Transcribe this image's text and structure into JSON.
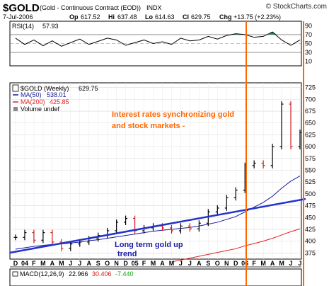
{
  "header": {
    "symbol": "$GOLD",
    "description": "(Gold - Continuous Contract (EOD))",
    "exchange": "INDX",
    "brand": "© StockCharts.com",
    "date": "7-Jul-2006",
    "open_label": "Op",
    "open": "617.52",
    "high_label": "Hi",
    "high": "637.48",
    "low_label": "Lo",
    "low": "614.63",
    "close_label": "Cl",
    "close": "629.75",
    "change_label": "Chg",
    "change": "+13.75 (+2.23%)"
  },
  "rsi": {
    "label": "RSI(14)",
    "value": "57.93",
    "ticks": [
      "90",
      "70",
      "50",
      "30",
      "10"
    ],
    "colors": {
      "line": "#000000",
      "fill": "#2e8b57"
    }
  },
  "price": {
    "legend": [
      {
        "label": "$GOLD (Weekly)",
        "value": "629.75",
        "color": "#000000"
      },
      {
        "label": "MA(50)",
        "value": "538.01",
        "color": "#1a1a9e"
      },
      {
        "label": "MA(200)",
        "value": "425.85",
        "color": "#e02020"
      },
      {
        "label": "Volume undef",
        "value": "",
        "color": "#555555"
      }
    ],
    "ticks": [
      "725",
      "700",
      "675",
      "650",
      "625",
      "600",
      "575",
      "550",
      "525",
      "500",
      "475",
      "450",
      "425",
      "400",
      "375"
    ],
    "annotations": [
      {
        "text": "Interest rates synchronizing  gold",
        "color": "#ff6600"
      },
      {
        "text": "and stock markets -",
        "color": "#ff6600"
      },
      {
        "text": "Long term gold up",
        "color": "#1a1aa8"
      },
      {
        "text": "trend",
        "color": "#1a1aa8"
      }
    ],
    "colors": {
      "up": "#000000",
      "down": "#d01818",
      "trendline": "#2233cc",
      "marker": "#ff6600"
    }
  },
  "xaxis": {
    "labels": [
      "D",
      "04",
      "F",
      "M",
      "A",
      "M",
      "J",
      "J",
      "A",
      "S",
      "O",
      "N",
      "D",
      "05",
      "F",
      "M",
      "A",
      "M",
      "J",
      "J",
      "A",
      "S",
      "O",
      "N",
      "D",
      "06",
      "F",
      "M",
      "A",
      "M",
      "J",
      "J"
    ]
  },
  "macd": {
    "label": "MACD(12,26,9)",
    "value1": "22.966",
    "value2": "30.406",
    "value3": "-7.440",
    "colors": {
      "value1": "#000000",
      "value2": "#d01818",
      "value3": "#1a9e1a"
    }
  },
  "chart_data": {
    "type": "line",
    "title": "$GOLD (Weekly)",
    "x": [
      "2003-12",
      "2004-01",
      "2004-02",
      "2004-03",
      "2004-04",
      "2004-05",
      "2004-06",
      "2004-07",
      "2004-08",
      "2004-09",
      "2004-10",
      "2004-11",
      "2004-12",
      "2005-01",
      "2005-02",
      "2005-03",
      "2005-04",
      "2005-05",
      "2005-06",
      "2005-07",
      "2005-08",
      "2005-09",
      "2005-10",
      "2005-11",
      "2005-12",
      "2006-01",
      "2006-02",
      "2006-03",
      "2006-04",
      "2006-05",
      "2006-06",
      "2006-07"
    ],
    "series": [
      {
        "name": "$GOLD (Weekly)",
        "values": [
          408,
          418,
          402,
          418,
          398,
          385,
          394,
          398,
          405,
          412,
          422,
          440,
          448,
          422,
          428,
          432,
          428,
          422,
          432,
          426,
          438,
          462,
          470,
          492,
          508,
          560,
          565,
          560,
          600,
          690,
          600,
          630
        ]
      },
      {
        "name": "MA(50)",
        "values": [
          383,
          386,
          389,
          391,
          393,
          394,
          396,
          398,
          401,
          403,
          406,
          409,
          412,
          415,
          418,
          421,
          423,
          425,
          427,
          429,
          432,
          436,
          440,
          446,
          452,
          462,
          472,
          482,
          495,
          512,
          527,
          538
        ]
      },
      {
        "name": "MA(200)",
        "values": [
          null,
          null,
          null,
          null,
          null,
          null,
          null,
          null,
          null,
          null,
          null,
          null,
          null,
          null,
          null,
          null,
          null,
          356,
          360,
          364,
          368,
          372,
          376,
          380,
          384,
          390,
          395,
          400,
          406,
          413,
          420,
          426
        ]
      }
    ],
    "ylim": [
      362,
      735
    ],
    "rsi_values": [
      62,
      48,
      58,
      45,
      56,
      44,
      52,
      60,
      48,
      55,
      62,
      58,
      46,
      52,
      58,
      50,
      54,
      48,
      62,
      56,
      58,
      66,
      60,
      68,
      72,
      70,
      64,
      66,
      76,
      58,
      46,
      58
    ],
    "rsi_ylim": [
      0,
      100
    ]
  }
}
